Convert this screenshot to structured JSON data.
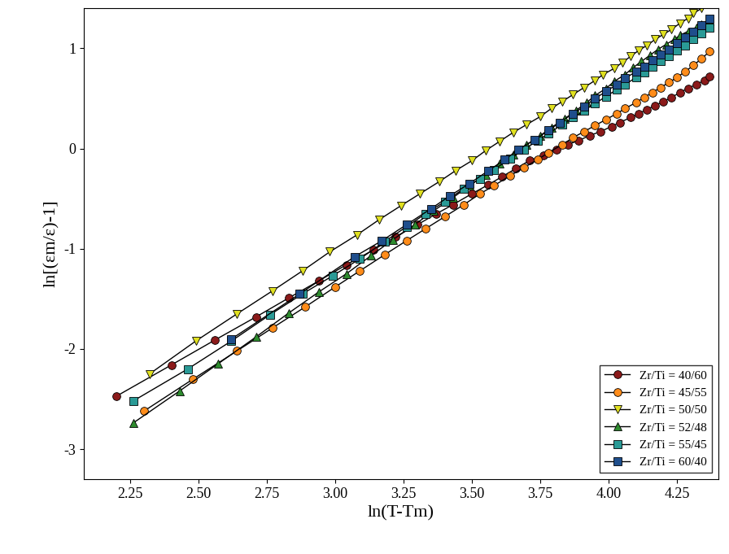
{
  "chart_data": {
    "type": "line",
    "x_label": "ln(T-Tm)",
    "y_label": "ln[(εm/ε)-1]",
    "xlim": [
      2.08,
      4.4
    ],
    "ylim": [
      -3.3,
      1.4
    ],
    "xticks": [
      2.25,
      {
        "value": 2.5,
        "label": "2.50"
      },
      2.75,
      {
        "value": 3.0,
        "label": "3.00"
      },
      3.25,
      {
        "value": 3.5,
        "label": "3.50"
      },
      3.75,
      {
        "value": 4.0,
        "label": "4.00"
      },
      4.25
    ],
    "yticks": [
      -3,
      -2,
      -1,
      0,
      1
    ],
    "grid": false,
    "legend": "lower right",
    "series": [
      {
        "name": "Zr/Ti = 40/60",
        "color": "#8b1a1a",
        "marker": "circle",
        "line_style": "solid",
        "x": [
          2.2,
          2.4,
          2.56,
          2.71,
          2.83,
          2.94,
          3.04,
          3.14,
          3.22,
          3.3,
          3.37,
          3.43,
          3.5,
          3.56,
          3.61,
          3.66,
          3.71,
          3.76,
          3.81,
          3.85,
          3.89,
          3.93,
          3.97,
          4.01,
          4.04,
          4.08,
          4.11,
          4.14,
          4.17,
          4.2,
          4.23,
          4.26,
          4.29,
          4.32,
          4.35,
          4.37
        ],
        "values": [
          -2.47,
          -2.16,
          -1.91,
          -1.68,
          -1.49,
          -1.32,
          -1.16,
          -1.01,
          -0.88,
          -0.76,
          -0.65,
          -0.56,
          -0.45,
          -0.36,
          -0.28,
          -0.2,
          -0.12,
          -0.07,
          -0.01,
          0.04,
          0.08,
          0.13,
          0.17,
          0.22,
          0.26,
          0.31,
          0.35,
          0.39,
          0.43,
          0.47,
          0.51,
          0.56,
          0.6,
          0.64,
          0.68,
          0.72
        ]
      },
      {
        "name": "Zr/Ti = 45/55",
        "color": "#ff8c1a",
        "marker": "circle",
        "line_style": "solid",
        "x": [
          2.3,
          2.48,
          2.64,
          2.77,
          2.89,
          3.0,
          3.09,
          3.18,
          3.26,
          3.33,
          3.4,
          3.47,
          3.53,
          3.58,
          3.64,
          3.69,
          3.74,
          3.78,
          3.83,
          3.87,
          3.91,
          3.95,
          3.99,
          4.03,
          4.06,
          4.1,
          4.13,
          4.16,
          4.19,
          4.22,
          4.25,
          4.28,
          4.31,
          4.34,
          4.37
        ],
        "values": [
          -2.62,
          -2.3,
          -2.02,
          -1.79,
          -1.58,
          -1.38,
          -1.22,
          -1.06,
          -0.92,
          -0.8,
          -0.68,
          -0.56,
          -0.45,
          -0.37,
          -0.27,
          -0.19,
          -0.11,
          -0.04,
          0.04,
          0.11,
          0.17,
          0.23,
          0.29,
          0.35,
          0.4,
          0.46,
          0.51,
          0.56,
          0.61,
          0.66,
          0.71,
          0.77,
          0.83,
          0.9,
          0.97
        ]
      },
      {
        "name": "Zr/Ti = 50/50",
        "color": "#e0e020",
        "marker": "triangle_down",
        "line_style": "solid",
        "x": [
          2.32,
          2.49,
          2.64,
          2.77,
          2.88,
          2.98,
          3.08,
          3.16,
          3.24,
          3.31,
          3.38,
          3.44,
          3.5,
          3.55,
          3.6,
          3.65,
          3.7,
          3.75,
          3.79,
          3.83,
          3.87,
          3.91,
          3.95,
          3.98,
          4.02,
          4.05,
          4.08,
          4.11,
          4.14,
          4.17,
          4.2,
          4.23,
          4.26,
          4.29,
          4.31,
          4.34
        ],
        "values": [
          -2.25,
          -1.92,
          -1.65,
          -1.42,
          -1.22,
          -1.03,
          -0.86,
          -0.71,
          -0.57,
          -0.45,
          -0.33,
          -0.22,
          -0.12,
          -0.02,
          0.07,
          0.16,
          0.24,
          0.32,
          0.4,
          0.47,
          0.54,
          0.61,
          0.68,
          0.74,
          0.8,
          0.86,
          0.92,
          0.98,
          1.03,
          1.09,
          1.14,
          1.19,
          1.25,
          1.3,
          1.35,
          1.4
        ]
      },
      {
        "name": "Zr/Ti = 52/48",
        "color": "#2e8b2e",
        "marker": "triangle_up",
        "line_style": "solid",
        "x": [
          2.26,
          2.43,
          2.57,
          2.71,
          2.83,
          2.94,
          3.04,
          3.13,
          3.21,
          3.29,
          3.36,
          3.43,
          3.49,
          3.55,
          3.6,
          3.65,
          3.7,
          3.75,
          3.79,
          3.84,
          3.88,
          3.92,
          3.95,
          3.99,
          4.02,
          4.06,
          4.09,
          4.12,
          4.15,
          4.18,
          4.21,
          4.24,
          4.26,
          4.29,
          4.32,
          4.34,
          4.37
        ],
        "values": [
          -2.74,
          -2.42,
          -2.15,
          -1.88,
          -1.64,
          -1.43,
          -1.25,
          -1.07,
          -0.91,
          -0.76,
          -0.62,
          -0.49,
          -0.37,
          -0.26,
          -0.15,
          -0.06,
          0.04,
          0.13,
          0.21,
          0.3,
          0.38,
          0.46,
          0.53,
          0.6,
          0.67,
          0.74,
          0.81,
          0.87,
          0.93,
          0.99,
          1.04,
          1.09,
          1.13,
          1.17,
          1.21,
          1.24,
          1.27
        ]
      },
      {
        "name": "Zr/Ti = 55/45",
        "color": "#2a9a96",
        "marker": "square",
        "line_style": "solid",
        "x": [
          2.26,
          2.46,
          2.62,
          2.76,
          2.88,
          2.99,
          3.09,
          3.18,
          3.26,
          3.33,
          3.4,
          3.47,
          3.53,
          3.58,
          3.64,
          3.69,
          3.74,
          3.78,
          3.83,
          3.87,
          3.91,
          3.95,
          3.99,
          4.03,
          4.06,
          4.1,
          4.13,
          4.16,
          4.19,
          4.22,
          4.25,
          4.28,
          4.31,
          4.34,
          4.37
        ],
        "values": [
          -2.52,
          -2.2,
          -1.92,
          -1.66,
          -1.45,
          -1.27,
          -1.1,
          -0.93,
          -0.78,
          -0.65,
          -0.53,
          -0.4,
          -0.3,
          -0.21,
          -0.1,
          -0.01,
          0.08,
          0.15,
          0.24,
          0.31,
          0.38,
          0.45,
          0.52,
          0.59,
          0.64,
          0.71,
          0.76,
          0.82,
          0.87,
          0.92,
          0.98,
          1.03,
          1.09,
          1.15,
          1.21
        ]
      },
      {
        "name": "Zr/Ti = 60/40",
        "color": "#1f4e8c",
        "marker": "square",
        "line_style": "solid",
        "x": [
          2.62,
          2.87,
          3.07,
          3.17,
          3.26,
          3.35,
          3.42,
          3.49,
          3.56,
          3.62,
          3.67,
          3.73,
          3.78,
          3.82,
          3.87,
          3.91,
          3.95,
          3.99,
          4.03,
          4.06,
          4.1,
          4.13,
          4.16,
          4.19,
          4.22,
          4.25,
          4.28,
          4.31,
          4.34,
          4.37
        ],
        "values": [
          -1.9,
          -1.45,
          -1.08,
          -0.92,
          -0.76,
          -0.6,
          -0.47,
          -0.35,
          -0.22,
          -0.11,
          -0.01,
          0.09,
          0.18,
          0.26,
          0.35,
          0.42,
          0.5,
          0.57,
          0.64,
          0.7,
          0.77,
          0.82,
          0.88,
          0.94,
          0.99,
          1.05,
          1.11,
          1.17,
          1.23,
          1.3
        ]
      }
    ]
  }
}
